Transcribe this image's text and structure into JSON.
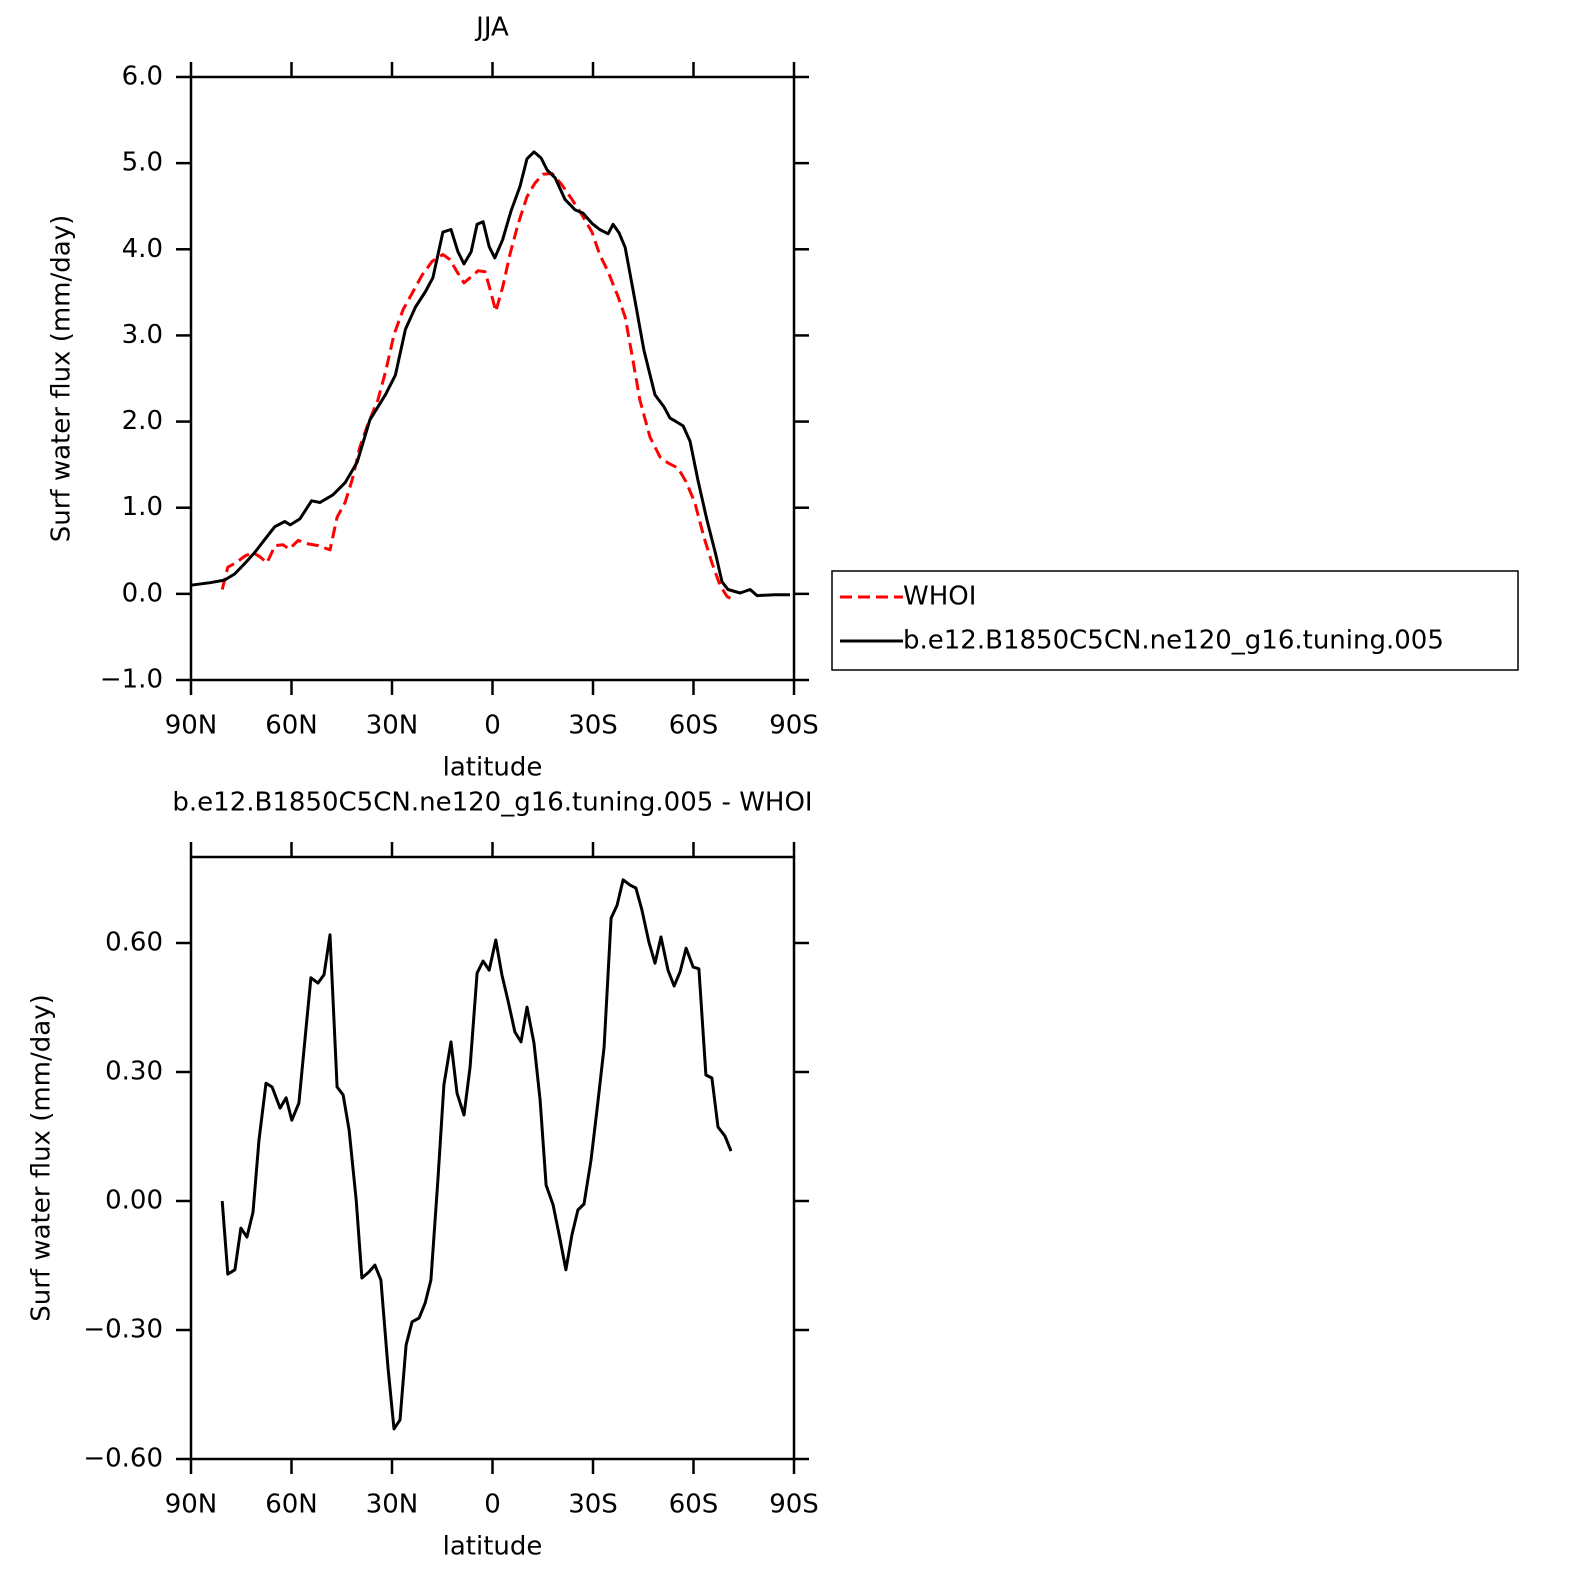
{
  "chart_data": [
    {
      "type": "line",
      "title": "JJA",
      "ylabel": "Surf water flux (mm/day)",
      "xlabel": "latitude",
      "xlim": [
        90,
        -90
      ],
      "xticks": [
        {
          "value": 90,
          "label": "90N"
        },
        {
          "value": 60,
          "label": "60N"
        },
        {
          "value": 30,
          "label": "30N"
        },
        0,
        {
          "value": -30,
          "label": "30S"
        },
        {
          "value": -60,
          "label": "60S"
        },
        {
          "value": -90,
          "label": "90S"
        }
      ],
      "ylim": [
        -1,
        6
      ],
      "yticks": [
        {
          "value": -1,
          "label": "−1.0"
        },
        {
          "value": 0,
          "label": "0.0"
        },
        {
          "value": 1,
          "label": "1.0"
        },
        {
          "value": 2,
          "label": "2.0"
        },
        {
          "value": 3,
          "label": "3.0"
        },
        {
          "value": 4,
          "label": "4.0"
        },
        {
          "value": 5,
          "label": "5.0"
        },
        {
          "value": 6,
          "label": "6.0"
        }
      ],
      "legend": "outside-right",
      "series": [
        {
          "name": "WHOI",
          "color": "#ff0000",
          "line_style": "dashed",
          "x": [
            80.7,
            79,
            76.6,
            73.9,
            71.5,
            69.4,
            67.3,
            64.9,
            62.5,
            60.7,
            58,
            55,
            52,
            48.5,
            46.4,
            44,
            41.9,
            39.6,
            37.2,
            34.2,
            31.8,
            29.4,
            26.7,
            23.7,
            21,
            18,
            14.8,
            12.7,
            10.6,
            8.5,
            6.4,
            4.3,
            2.2,
            0.7,
            -1,
            -3.1,
            -5.2,
            -7.6,
            -10.3,
            -12.7,
            -15.1,
            -17.8,
            -20.7,
            -23.7,
            -26.7,
            -29.7,
            -32,
            -34.5,
            -37.5,
            -39.6,
            -41.6,
            -44,
            -47,
            -50,
            -52.4,
            -55.4,
            -57.8,
            -60.4,
            -63.1,
            -65.5,
            -67.9,
            -70,
            -71.8
          ],
          "values": [
            0.05,
            0.31,
            0.36,
            0.44,
            0.48,
            0.43,
            0.36,
            0.56,
            0.57,
            0.52,
            0.62,
            0.58,
            0.56,
            0.51,
            0.89,
            1.06,
            1.32,
            1.7,
            1.97,
            2.25,
            2.6,
            3.01,
            3.3,
            3.51,
            3.7,
            3.86,
            3.94,
            3.88,
            3.74,
            3.61,
            3.68,
            3.75,
            3.74,
            3.53,
            3.28,
            3.57,
            3.94,
            4.29,
            4.61,
            4.77,
            4.87,
            4.88,
            4.75,
            4.58,
            4.4,
            4.2,
            3.94,
            3.74,
            3.45,
            3.21,
            2.78,
            2.25,
            1.82,
            1.59,
            1.52,
            1.46,
            1.3,
            1.06,
            0.66,
            0.36,
            0.1,
            -0.03,
            -0.07
          ]
        },
        {
          "name": "b.e12.B1850C5CN.ne120_g16.tuning.005",
          "color": "#000000",
          "line_style": "solid",
          "x": [
            90,
            84.3,
            80,
            77,
            74,
            71,
            68,
            65,
            62,
            60.4,
            57.5,
            54,
            51.5,
            47.6,
            44,
            40.4,
            36.6,
            32,
            29,
            26,
            23,
            20,
            17.8,
            14.8,
            12.4,
            10.3,
            8.5,
            6.4,
            4.6,
            2.8,
            1,
            -0.7,
            -3,
            -5.5,
            -8.2,
            -10.3,
            -12.4,
            -14.5,
            -16.3,
            -18.7,
            -21.6,
            -24.6,
            -27,
            -29.7,
            -32,
            -34.5,
            -36,
            -37.8,
            -39.6,
            -42.5,
            -45.2,
            -48.5,
            -51.2,
            -53,
            -54.8,
            -56.9,
            -59,
            -61.3,
            -64,
            -66.7,
            -68.5,
            -70.3,
            -73.9,
            -76.9,
            -79,
            -84.3,
            -88.8
          ],
          "values": [
            0.1,
            0.13,
            0.16,
            0.23,
            0.35,
            0.48,
            0.63,
            0.78,
            0.84,
            0.8,
            0.87,
            1.08,
            1.06,
            1.15,
            1.29,
            1.53,
            2.02,
            2.31,
            2.54,
            3.07,
            3.33,
            3.51,
            3.67,
            4.2,
            4.23,
            3.97,
            3.83,
            3.97,
            4.29,
            4.32,
            4.03,
            3.9,
            4.11,
            4.44,
            4.73,
            5.05,
            5.13,
            5.06,
            4.92,
            4.83,
            4.58,
            4.46,
            4.42,
            4.3,
            4.23,
            4.18,
            4.29,
            4.19,
            4.02,
            3.41,
            2.83,
            2.31,
            2.17,
            2.04,
            2.0,
            1.95,
            1.77,
            1.32,
            0.86,
            0.45,
            0.14,
            0.05,
            0.01,
            0.05,
            -0.02,
            -0.01,
            -0.01
          ]
        }
      ]
    },
    {
      "type": "line",
      "title": "b.e12.B1850C5CN.ne120_g16.tuning.005 - WHOI",
      "ylabel": "Surf water flux (mm/day)",
      "xlabel": "latitude",
      "xlim": [
        90,
        -90
      ],
      "xticks": [
        {
          "value": 90,
          "label": "90N"
        },
        {
          "value": 60,
          "label": "60N"
        },
        {
          "value": 30,
          "label": "30N"
        },
        0,
        {
          "value": -30,
          "label": "30S"
        },
        {
          "value": -60,
          "label": "60S"
        },
        {
          "value": -90,
          "label": "90S"
        }
      ],
      "ylim": [
        -0.6,
        0.8
      ],
      "yticks": [
        {
          "value": -0.6,
          "label": "−0.60"
        },
        {
          "value": -0.3,
          "label": "−0.30"
        },
        {
          "value": 0,
          "label": "0.00"
        },
        {
          "value": 0.3,
          "label": "0.30"
        },
        {
          "value": 0.6,
          "label": "0.60"
        }
      ],
      "series": [
        {
          "color": "#000000",
          "line_style": "solid",
          "x": [
            80.7,
            79,
            76.9,
            75.1,
            73.3,
            71.5,
            69.7,
            67.6,
            65.8,
            63.4,
            61.6,
            59.9,
            57.8,
            56,
            54.2,
            52.1,
            50.3,
            48.5,
            46.4,
            44.6,
            42.8,
            40.7,
            39,
            36.9,
            35.1,
            33.3,
            31.2,
            29.4,
            27.6,
            25.8,
            24,
            21.9,
            20.1,
            18.4,
            16.3,
            14.5,
            12.4,
            10.6,
            8.5,
            6.7,
            4.6,
            2.8,
            1,
            -1,
            -2.8,
            -4.6,
            -6.7,
            -8.5,
            -10.3,
            -12.4,
            -14.2,
            -16,
            -18.1,
            -19.9,
            -21.9,
            -23.7,
            -25.5,
            -27.3,
            -29.4,
            -31.2,
            -33.3,
            -35.4,
            -37.2,
            -39,
            -41,
            -42.8,
            -44.6,
            -46.7,
            -48.5,
            -50.3,
            -52.4,
            -54.2,
            -56,
            -57.8,
            -59.9,
            -61.6,
            -63.7,
            -65.5,
            -67.3,
            -69.4,
            -71.2
          ],
          "values": [
            0,
            -0.17,
            -0.16,
            -0.063,
            -0.084,
            -0.026,
            0.142,
            0.274,
            0.265,
            0.216,
            0.24,
            0.188,
            0.228,
            0.374,
            0.519,
            0.507,
            0.526,
            0.619,
            0.265,
            0.247,
            0.165,
            0.002,
            -0.179,
            -0.165,
            -0.149,
            -0.184,
            -0.388,
            -0.53,
            -0.509,
            -0.335,
            -0.281,
            -0.272,
            -0.237,
            -0.184,
            0.049,
            0.27,
            0.37,
            0.251,
            0.2,
            0.312,
            0.53,
            0.558,
            0.537,
            0.607,
            0.526,
            0.467,
            0.393,
            0.37,
            0.451,
            0.367,
            0.235,
            0.037,
            -0.009,
            -0.079,
            -0.16,
            -0.079,
            -0.021,
            -0.007,
            0.095,
            0.212,
            0.358,
            0.658,
            0.688,
            0.747,
            0.735,
            0.728,
            0.677,
            0.602,
            0.553,
            0.614,
            0.537,
            0.5,
            0.533,
            0.588,
            0.544,
            0.54,
            0.293,
            0.286,
            0.172,
            0.151,
            0.116
          ]
        }
      ]
    }
  ]
}
